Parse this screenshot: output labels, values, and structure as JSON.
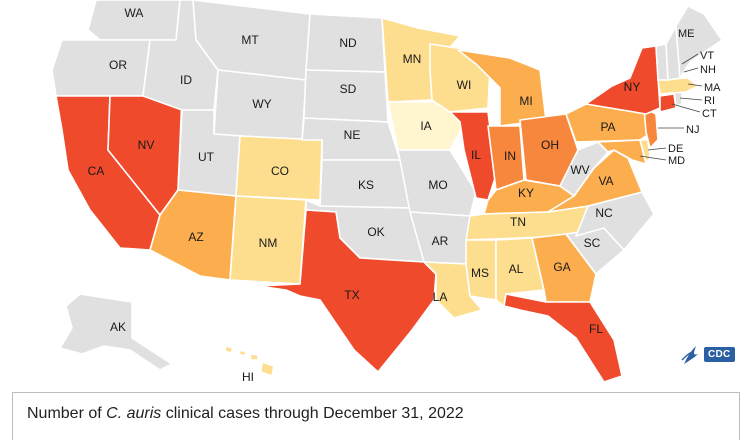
{
  "colors": {
    "none": "#e0e0e0",
    "very_low": "#fff6cf",
    "low": "#fdde8e",
    "medium": "#fcae4f",
    "high": "#f7873d",
    "very_high": "#ee4a2b"
  },
  "states": {
    "WA": {
      "label": "WA",
      "level": "none"
    },
    "OR": {
      "label": "OR",
      "level": "none"
    },
    "CA": {
      "label": "CA",
      "level": "very_high"
    },
    "NV": {
      "label": "NV",
      "level": "very_high"
    },
    "ID": {
      "label": "ID",
      "level": "none"
    },
    "MT": {
      "label": "MT",
      "level": "none"
    },
    "WY": {
      "label": "WY",
      "level": "none"
    },
    "UT": {
      "label": "UT",
      "level": "none"
    },
    "AZ": {
      "label": "AZ",
      "level": "medium"
    },
    "CO": {
      "label": "CO",
      "level": "low"
    },
    "NM": {
      "label": "NM",
      "level": "low"
    },
    "ND": {
      "label": "ND",
      "level": "none"
    },
    "SD": {
      "label": "SD",
      "level": "none"
    },
    "NE": {
      "label": "NE",
      "level": "none"
    },
    "KS": {
      "label": "KS",
      "level": "none"
    },
    "OK": {
      "label": "OK",
      "level": "none"
    },
    "TX": {
      "label": "TX",
      "level": "very_high"
    },
    "MN": {
      "label": "MN",
      "level": "low"
    },
    "IA": {
      "label": "IA",
      "level": "very_low"
    },
    "MO": {
      "label": "MO",
      "level": "none"
    },
    "AR": {
      "label": "AR",
      "level": "none"
    },
    "LA": {
      "label": "LA",
      "level": "low"
    },
    "WI": {
      "label": "WI",
      "level": "low"
    },
    "IL": {
      "label": "IL",
      "level": "very_high"
    },
    "MI": {
      "label": "MI",
      "level": "medium"
    },
    "IN": {
      "label": "IN",
      "level": "high"
    },
    "OH": {
      "label": "OH",
      "level": "high"
    },
    "KY": {
      "label": "KY",
      "level": "medium"
    },
    "TN": {
      "label": "TN",
      "level": "low"
    },
    "MS": {
      "label": "MS",
      "level": "low"
    },
    "AL": {
      "label": "AL",
      "level": "low"
    },
    "GA": {
      "label": "GA",
      "level": "medium"
    },
    "FL": {
      "label": "FL",
      "level": "very_high"
    },
    "SC": {
      "label": "SC",
      "level": "none"
    },
    "NC": {
      "label": "NC",
      "level": "none"
    },
    "VA": {
      "label": "VA",
      "level": "medium"
    },
    "WV": {
      "label": "WV",
      "level": "none"
    },
    "PA": {
      "label": "PA",
      "level": "medium"
    },
    "NY": {
      "label": "NY",
      "level": "very_high"
    },
    "NJ": {
      "label": "NJ",
      "level": "high"
    },
    "DE": {
      "label": "DE",
      "level": "low"
    },
    "MD": {
      "label": "MD",
      "level": "medium"
    },
    "CT": {
      "label": "CT",
      "level": "very_high"
    },
    "RI": {
      "label": "RI",
      "level": "none"
    },
    "MA": {
      "label": "MA",
      "level": "low"
    },
    "VT": {
      "label": "VT",
      "level": "none"
    },
    "NH": {
      "label": "NH",
      "level": "none"
    },
    "ME": {
      "label": "ME",
      "level": "none"
    },
    "AK": {
      "label": "AK",
      "level": "none"
    },
    "HI": {
      "label": "HI",
      "level": "low"
    }
  },
  "caption": {
    "prefix": "Number of ",
    "organism": "C. auris",
    "suffix": " clinical cases through December 31, 2022"
  },
  "logo": {
    "text": "CDC",
    "icon": "hhs-eagle-icon"
  }
}
